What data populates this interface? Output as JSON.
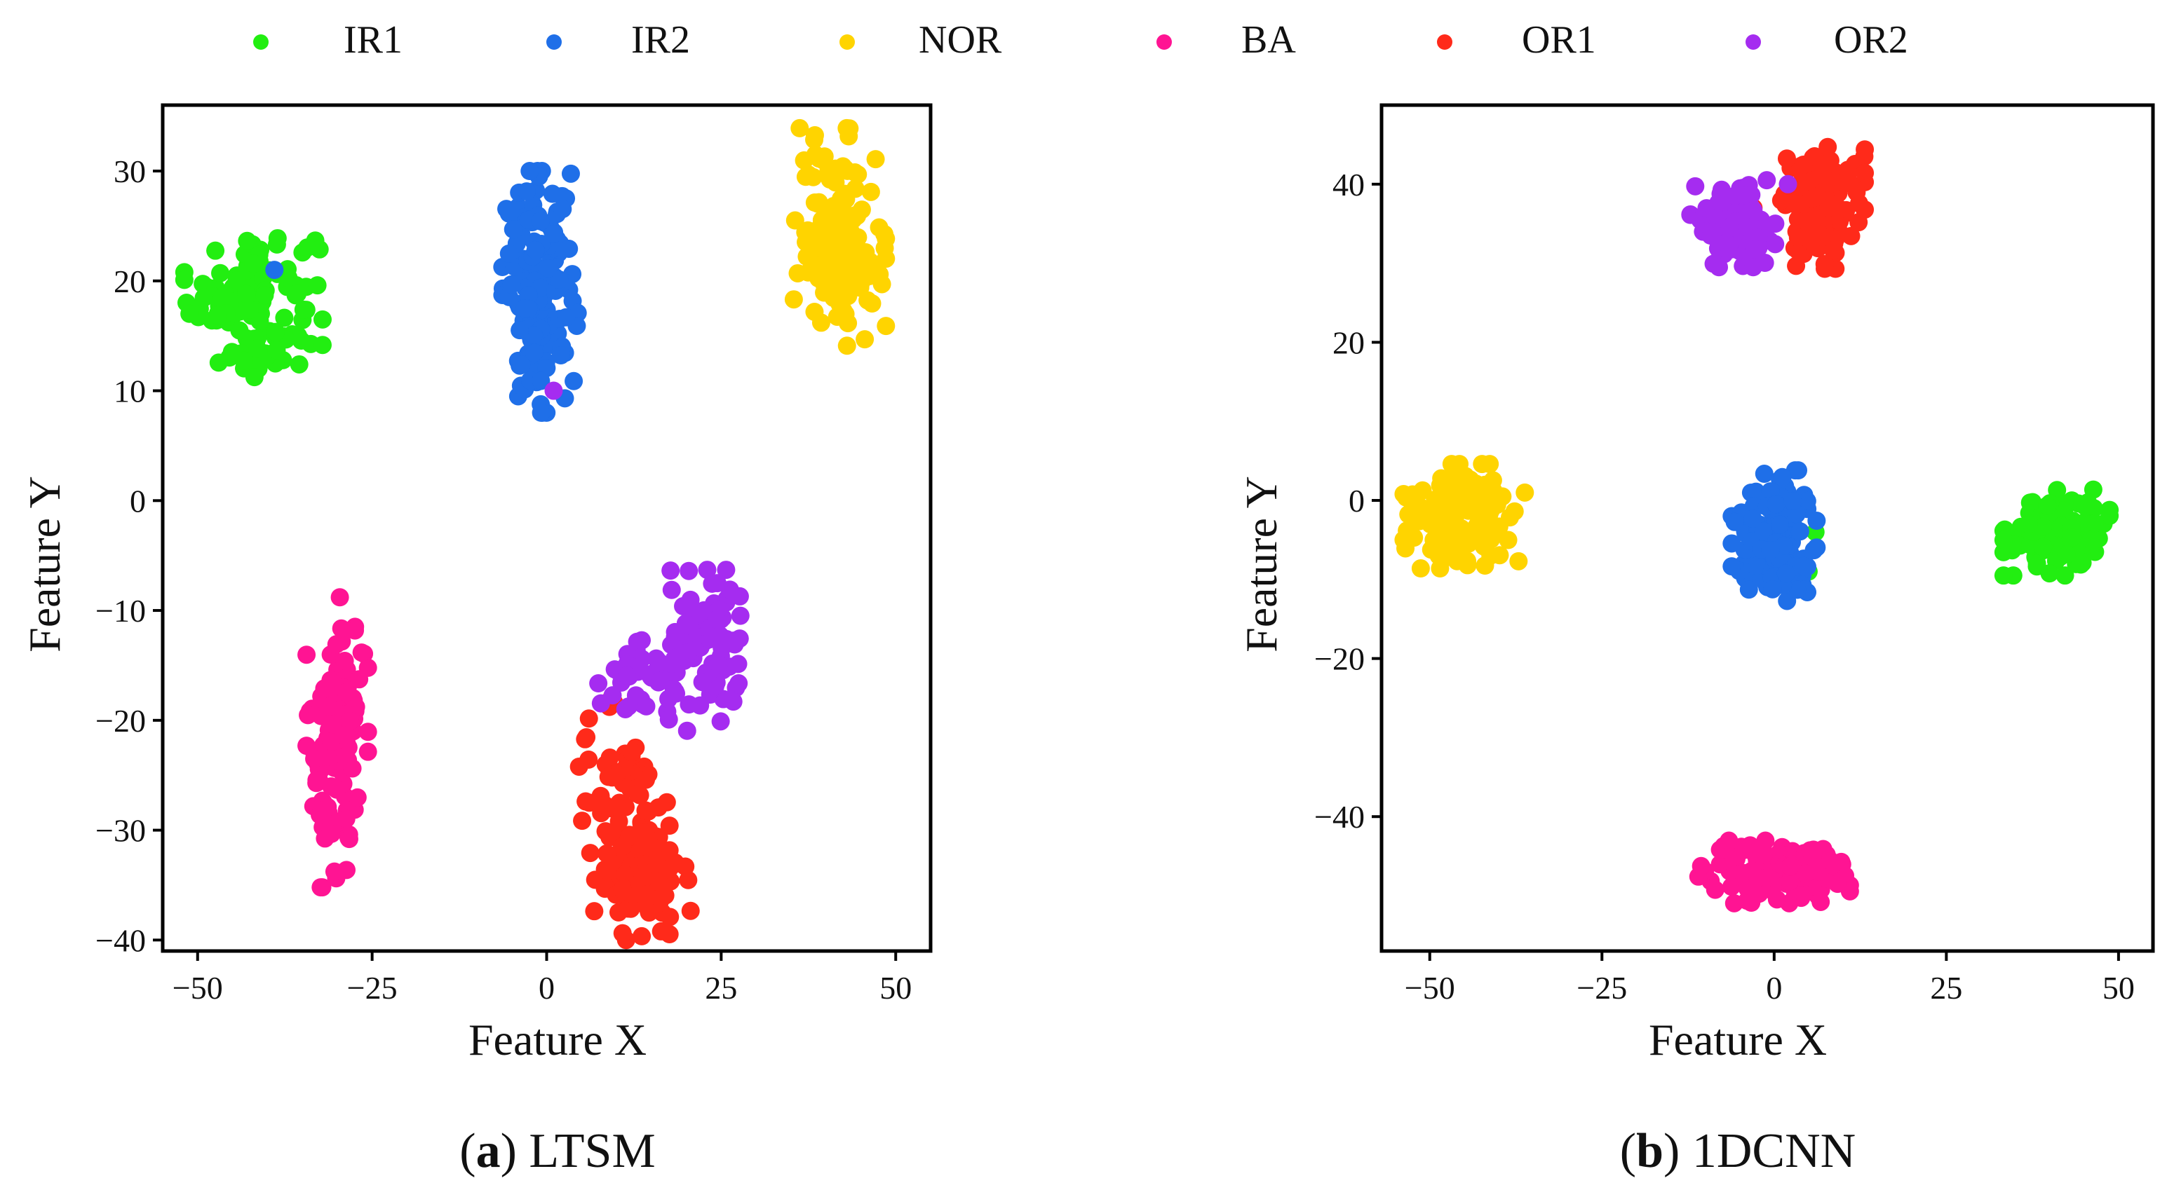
{
  "legend": [
    {
      "name": "IR1",
      "color": "#22ee11"
    },
    {
      "name": "IR2",
      "color": "#1f6fe8"
    },
    {
      "name": "NOR",
      "color": "#ffd400"
    },
    {
      "name": "BA",
      "color": "#ff1493"
    },
    {
      "name": "OR1",
      "color": "#ff2a1a"
    },
    {
      "name": "OR2",
      "color": "#a52cf0"
    }
  ],
  "chart_data": [
    {
      "type": "scatter",
      "caption_letter": "a",
      "caption_open": "(",
      "caption_rest": ") LTSM",
      "xlabel": "Feature X",
      "ylabel": "Feature Y",
      "xlim": [
        -55,
        55
      ],
      "ylim": [
        -41,
        36
      ],
      "xticks": [
        -50,
        -25,
        0,
        25,
        50
      ],
      "xtick_labels": [
        "−50",
        "−25",
        "0",
        "25",
        "50"
      ],
      "yticks": [
        30,
        20,
        10,
        0,
        -10,
        -20,
        -30,
        -40
      ],
      "ytick_labels": [
        "30",
        "20",
        "10",
        "0",
        "−10",
        "−20",
        "−30",
        "−40"
      ],
      "series": [
        {
          "name": "IR1",
          "color": "#22ee11",
          "clusters": [
            {
              "cx": -42,
              "cy": 19,
              "sx": 4.5,
              "sy": 3,
              "n": 110
            },
            {
              "cx": -43,
              "cy": 13,
              "sx": 2.5,
              "sy": 0.8,
              "n": 14
            }
          ]
        },
        {
          "name": "IR2",
          "color": "#1f6fe8",
          "clusters": [
            {
              "cx": -1,
              "cy": 19,
              "sx": 2.6,
              "sy": 5,
              "n": 150
            }
          ],
          "outliers": [
            [
              -39,
              21
            ]
          ]
        },
        {
          "name": "NOR",
          "color": "#ffd400",
          "clusters": [
            {
              "cx": 42,
              "cy": 24,
              "sx": 3,
              "sy": 4.5,
              "n": 130
            }
          ]
        },
        {
          "name": "BA",
          "color": "#ff1493",
          "clusters": [
            {
              "cx": -30,
              "cy": -22,
              "sx": 2,
              "sy": 6,
              "n": 130
            }
          ]
        },
        {
          "name": "OR1",
          "color": "#ff2a1a",
          "clusters": [
            {
              "cx": 11,
              "cy": -29,
              "sx": 3,
              "sy": 5,
              "n": 110
            },
            {
              "cx": 15,
              "cy": -34,
              "sx": 3,
              "sy": 2.5,
              "n": 60
            }
          ]
        },
        {
          "name": "OR2",
          "color": "#a52cf0",
          "clusters": [
            {
              "cx": 23,
              "cy": -14,
              "sx": 3,
              "sy": 3.5,
              "n": 90
            },
            {
              "cx": 14,
              "cy": -16,
              "sx": 3,
              "sy": 2,
              "n": 40
            }
          ],
          "outliers": [
            [
              1,
              10
            ]
          ]
        }
      ]
    },
    {
      "type": "scatter",
      "caption_letter": "b",
      "caption_open": "(",
      "caption_rest": ") 1DCNN",
      "xlabel": "Feature X",
      "ylabel": "Feature Y",
      "xlim": [
        -57,
        55
      ],
      "ylim": [
        -57,
        50
      ],
      "xticks": [
        -50,
        -25,
        0,
        25,
        50
      ],
      "xtick_labels": [
        "−50",
        "−25",
        "0",
        "25",
        "50"
      ],
      "yticks": [
        40,
        20,
        0,
        -20,
        -40
      ],
      "ytick_labels": [
        "40",
        "20",
        "0",
        "−20",
        "−40"
      ],
      "series": [
        {
          "name": "IR1",
          "color": "#22ee11",
          "clusters": [
            {
              "cx": 41,
              "cy": -4,
              "sx": 3.5,
              "sy": 2.5,
              "n": 130
            }
          ],
          "outliers": [
            [
              5,
              -9
            ],
            [
              6,
              -4
            ]
          ]
        },
        {
          "name": "IR2",
          "color": "#1f6fe8",
          "clusters": [
            {
              "cx": 0,
              "cy": -5,
              "sx": 2.8,
              "sy": 4,
              "n": 150
            }
          ]
        },
        {
          "name": "NOR",
          "color": "#ffd400",
          "clusters": [
            {
              "cx": -45,
              "cy": -2,
              "sx": 4,
              "sy": 3,
              "n": 130
            }
          ]
        },
        {
          "name": "BA",
          "color": "#ff1493",
          "clusters": [
            {
              "cx": 0,
              "cy": -47,
              "sx": 5,
              "sy": 1.8,
              "n": 150
            }
          ]
        },
        {
          "name": "OR1",
          "color": "#ff2a1a",
          "clusters": [
            {
              "cx": 7,
              "cy": 37,
              "sx": 2.8,
              "sy": 3.5,
              "n": 130
            }
          ],
          "outliers": [
            [
              -3,
              37
            ]
          ]
        },
        {
          "name": "OR2",
          "color": "#a52cf0",
          "clusters": [
            {
              "cx": -6,
              "cy": 35,
              "sx": 2.8,
              "sy": 2.5,
              "n": 100
            }
          ],
          "outliers": [
            [
              2,
              40
            ]
          ]
        }
      ]
    }
  ]
}
